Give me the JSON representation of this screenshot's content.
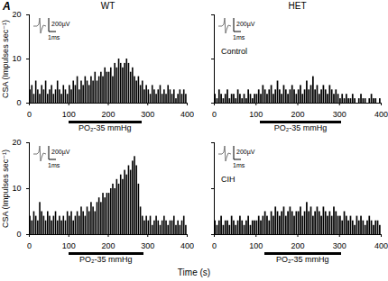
{
  "panel_label": "A",
  "column_titles": [
    "WT",
    "HET"
  ],
  "row_titles": [
    "Control",
    "CIH"
  ],
  "xlabel": "Time (s)",
  "chart_data": [
    {
      "type": "histogram",
      "color": "#000000",
      "ylabel": "CSA (Impulses sec⁻¹)",
      "xlim": [
        0,
        400
      ],
      "xticks": [
        0,
        100,
        200,
        300,
        400
      ],
      "ylim": [
        0,
        20
      ],
      "yticks": [
        0,
        10,
        20
      ],
      "bins": [
        0,
        5,
        10,
        15,
        20,
        25,
        30,
        35,
        40,
        45,
        50,
        55,
        60,
        65,
        70,
        75,
        80,
        85,
        90,
        95,
        100,
        105,
        110,
        115,
        120,
        125,
        130,
        135,
        140,
        145,
        150,
        155,
        160,
        165,
        170,
        175,
        180,
        185,
        190,
        195,
        200,
        205,
        210,
        215,
        220,
        225,
        230,
        235,
        240,
        245,
        250,
        255,
        260,
        265,
        270,
        275,
        280,
        285,
        290,
        295,
        300,
        305,
        310,
        315,
        320,
        325,
        330,
        335,
        340,
        345,
        350,
        355,
        360,
        365,
        370,
        375,
        380,
        385,
        390,
        395,
        400
      ],
      "counts": [
        3,
        4,
        2,
        5,
        3,
        2,
        4,
        3,
        5,
        2,
        3,
        4,
        2,
        3,
        5,
        3,
        2,
        4,
        3,
        2,
        4,
        3,
        5,
        4,
        6,
        3,
        5,
        4,
        6,
        5,
        4,
        6,
        5,
        7,
        5,
        6,
        7,
        6,
        8,
        7,
        7,
        8,
        6,
        9,
        8,
        10,
        9,
        8,
        9,
        10,
        9,
        7,
        8,
        6,
        5,
        6,
        4,
        5,
        3,
        4,
        3,
        2,
        4,
        3,
        2,
        3,
        4,
        2,
        3,
        2,
        4,
        3,
        2,
        3,
        1,
        2,
        3,
        2,
        3,
        2
      ],
      "stimulus": {
        "start": 100,
        "end": 285,
        "label": "PO₂-35 mmHg"
      },
      "annotations": [
        "200µV",
        "1ms"
      ]
    },
    {
      "type": "histogram",
      "color": "#000000",
      "tick_labels": "x",
      "xlim": [
        0,
        400
      ],
      "xticks": [
        0,
        100,
        200,
        300,
        400
      ],
      "ylim": [
        0,
        20
      ],
      "yticks": [
        0,
        10,
        20
      ],
      "bins": [
        0,
        5,
        10,
        15,
        20,
        25,
        30,
        35,
        40,
        45,
        50,
        55,
        60,
        65,
        70,
        75,
        80,
        85,
        90,
        95,
        100,
        105,
        110,
        115,
        120,
        125,
        130,
        135,
        140,
        145,
        150,
        155,
        160,
        165,
        170,
        175,
        180,
        185,
        190,
        195,
        200,
        205,
        210,
        215,
        220,
        225,
        230,
        235,
        240,
        245,
        250,
        255,
        260,
        265,
        270,
        275,
        280,
        285,
        290,
        295,
        300,
        305,
        310,
        315,
        320,
        325,
        330,
        335,
        340,
        345,
        350,
        355,
        360,
        365,
        370,
        375,
        380,
        385,
        390,
        395,
        400
      ],
      "counts": [
        2,
        1,
        3,
        2,
        1,
        2,
        3,
        1,
        2,
        2,
        1,
        3,
        2,
        1,
        2,
        1,
        3,
        2,
        1,
        2,
        2,
        3,
        2,
        4,
        3,
        2,
        3,
        4,
        2,
        3,
        5,
        3,
        2,
        4,
        3,
        2,
        3,
        4,
        3,
        2,
        3,
        4,
        2,
        3,
        5,
        3,
        4,
        6,
        3,
        4,
        2,
        3,
        4,
        3,
        2,
        4,
        3,
        2,
        3,
        2,
        1,
        2,
        1,
        2,
        1,
        1,
        2,
        1,
        0,
        1,
        2,
        1,
        1,
        0,
        1,
        2,
        1,
        1,
        0,
        1
      ],
      "stimulus": {
        "start": 110,
        "end": 305,
        "label": "PO₂-35 mmHg"
      },
      "annotations": [
        "200µV",
        "1ms"
      ]
    },
    {
      "type": "histogram",
      "color": "#000000",
      "ylabel": "CSA (Impulses sec⁻¹)",
      "xlim": [
        0,
        400
      ],
      "xticks": [
        0,
        100,
        200,
        300,
        400
      ],
      "ylim": [
        0,
        20
      ],
      "yticks": [
        0,
        10,
        20
      ],
      "bins": [
        0,
        5,
        10,
        15,
        20,
        25,
        30,
        35,
        40,
        45,
        50,
        55,
        60,
        65,
        70,
        75,
        80,
        85,
        90,
        95,
        100,
        105,
        110,
        115,
        120,
        125,
        130,
        135,
        140,
        145,
        150,
        155,
        160,
        165,
        170,
        175,
        180,
        185,
        190,
        195,
        200,
        205,
        210,
        215,
        220,
        225,
        230,
        235,
        240,
        245,
        250,
        255,
        260,
        265,
        270,
        275,
        280,
        285,
        290,
        295,
        300,
        305,
        310,
        315,
        320,
        325,
        330,
        335,
        340,
        345,
        350,
        355,
        360,
        365,
        370,
        375,
        380,
        385,
        390,
        395,
        400
      ],
      "counts": [
        4,
        3,
        5,
        4,
        3,
        7,
        5,
        4,
        3,
        5,
        4,
        3,
        4,
        5,
        3,
        4,
        3,
        4,
        3,
        5,
        4,
        5,
        3,
        4,
        5,
        4,
        6,
        5,
        4,
        6,
        5,
        7,
        6,
        5,
        7,
        8,
        7,
        9,
        8,
        9,
        9,
        10,
        11,
        10,
        12,
        11,
        13,
        12,
        14,
        13,
        15,
        14,
        16,
        17,
        15,
        11,
        6,
        4,
        3,
        4,
        3,
        4,
        2,
        3,
        4,
        3,
        2,
        3,
        4,
        3,
        2,
        3,
        3,
        4,
        2,
        3,
        2,
        3,
        4,
        2
      ],
      "stimulus": {
        "start": 100,
        "end": 290,
        "label": "PO₂-35 mmHg"
      },
      "annotations": [
        "200µV",
        "1ms"
      ]
    },
    {
      "type": "histogram",
      "color": "#000000",
      "tick_labels": "x",
      "xlim": [
        0,
        400
      ],
      "xticks": [
        0,
        100,
        200,
        300,
        400
      ],
      "ylim": [
        0,
        20
      ],
      "yticks": [
        0,
        10,
        20
      ],
      "bins": [
        0,
        5,
        10,
        15,
        20,
        25,
        30,
        35,
        40,
        45,
        50,
        55,
        60,
        65,
        70,
        75,
        80,
        85,
        90,
        95,
        100,
        105,
        110,
        115,
        120,
        125,
        130,
        135,
        140,
        145,
        150,
        155,
        160,
        165,
        170,
        175,
        180,
        185,
        190,
        195,
        200,
        205,
        210,
        215,
        220,
        225,
        230,
        235,
        240,
        245,
        250,
        255,
        260,
        265,
        270,
        275,
        280,
        285,
        290,
        295,
        300,
        305,
        310,
        315,
        320,
        325,
        330,
        335,
        340,
        345,
        350,
        355,
        360,
        365,
        370,
        375,
        380,
        385,
        390,
        395,
        400
      ],
      "counts": [
        3,
        2,
        3,
        4,
        2,
        3,
        3,
        2,
        4,
        3,
        2,
        3,
        4,
        3,
        2,
        3,
        4,
        2,
        3,
        3,
        3,
        4,
        3,
        4,
        5,
        4,
        3,
        5,
        4,
        6,
        5,
        4,
        5,
        6,
        4,
        5,
        6,
        5,
        4,
        5,
        5,
        6,
        4,
        5,
        7,
        5,
        6,
        4,
        5,
        6,
        5,
        4,
        6,
        5,
        4,
        5,
        4,
        6,
        5,
        4,
        4,
        3,
        5,
        4,
        3,
        4,
        3,
        2,
        4,
        3,
        4,
        3,
        2,
        3,
        4,
        3,
        2,
        3,
        3,
        2
      ],
      "stimulus": {
        "start": 120,
        "end": 305,
        "label": "PO₂-35 mmHg"
      },
      "annotations": [
        "200µV",
        "1ms"
      ]
    }
  ]
}
